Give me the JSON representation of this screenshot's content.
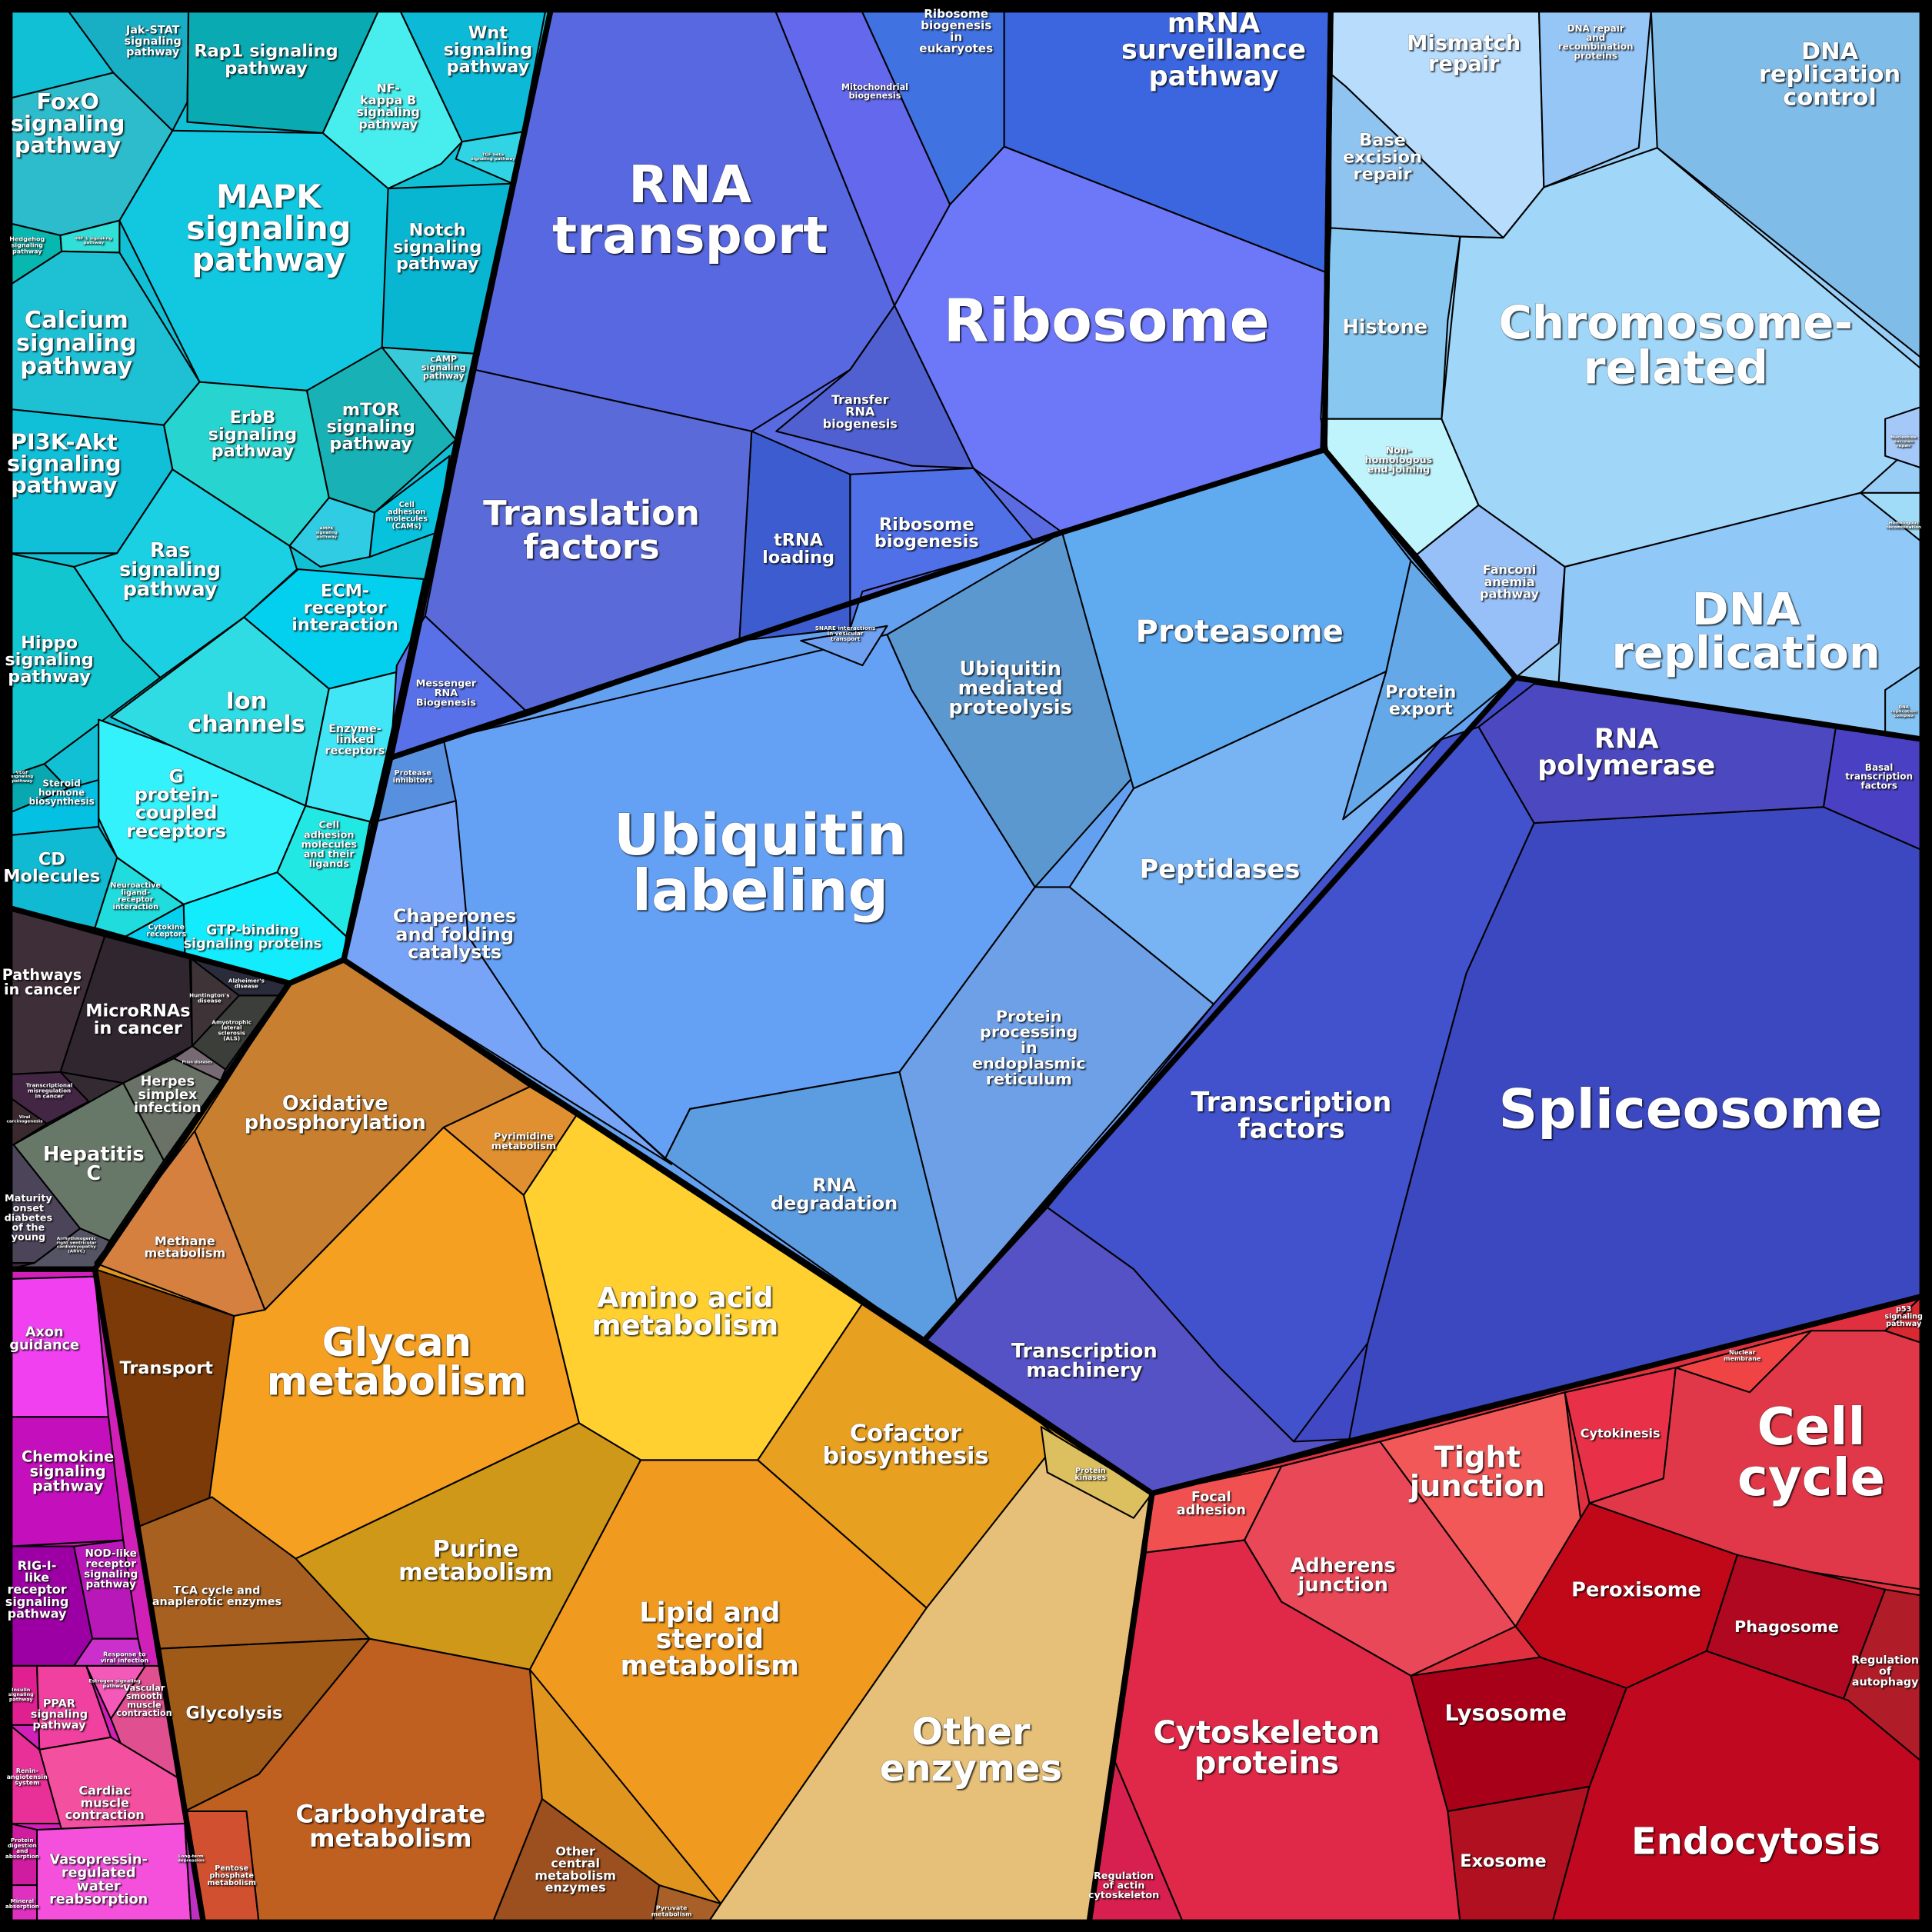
{
  "groups": [
    {
      "id": "signaling",
      "color": "#12c0d6",
      "regions": [
        {
          "id": "foxo",
          "label": "FoxO\nsignaling\npathway",
          "color": "#2cbccc"
        },
        {
          "id": "jak",
          "label": "Jak-STAT\nsignaling\npathway",
          "color": "#18aec4"
        },
        {
          "id": "rap1",
          "label": "Rap1 signaling\npathway",
          "color": "#09aab2"
        },
        {
          "id": "nfkb",
          "label": "NF-\nkappa B\nsignaling\npathway",
          "color": "#48eeee"
        },
        {
          "id": "wnt",
          "label": "Wnt\nsignaling\npathway",
          "color": "#0cbad8"
        },
        {
          "id": "tgfb",
          "label": "TGF-beta\nsignaling pathway",
          "color": "#30d4e4"
        },
        {
          "id": "mapk",
          "label": "MAPK\nsignaling\npathway",
          "color": "#12c8e0"
        },
        {
          "id": "notch",
          "label": "Notch\nsignaling\npathway",
          "color": "#08b6d2"
        },
        {
          "id": "hedgehog",
          "label": "Hedgehog\nsignaling\npathway",
          "color": "#06b8b0"
        },
        {
          "id": "hif1",
          "label": "HIF-1 signaling\npathway",
          "color": "#30e0d8"
        },
        {
          "id": "calcium",
          "label": "Calcium\nsignaling\npathway",
          "color": "#1ec0d4"
        },
        {
          "id": "camp",
          "label": "cAMP\nsignaling\npathway",
          "color": "#38cad8"
        },
        {
          "id": "mtor",
          "label": "mTOR\nsignaling\npathway",
          "color": "#18b2b6"
        },
        {
          "id": "erbb",
          "label": "ErbB\nsignaling\npathway",
          "color": "#28d4d0"
        },
        {
          "id": "pi3k",
          "label": "PI3K-Akt\nsignaling\npathway",
          "color": "#10c0d8"
        },
        {
          "id": "cams",
          "label": "Cell\nadhesion\nmolecules\n(CAMs)",
          "color": "#06c2dc"
        },
        {
          "id": "ampk",
          "label": "AMPK\nsignaling\npathway",
          "color": "#30cce4"
        },
        {
          "id": "ras",
          "label": "Ras\nsignaling\npathway",
          "color": "#1ad0e2"
        },
        {
          "id": "hippo",
          "label": "Hippo\nsignaling\npathway",
          "color": "#12c6d0"
        },
        {
          "id": "vegf",
          "label": "VEGF\nsignaling\npathway",
          "color": "#08a8b0"
        },
        {
          "id": "ecm",
          "label": "ECM-\nreceptor\ninteraction",
          "color": "#02d0ee"
        },
        {
          "id": "ion",
          "label": "Ion\nchannels",
          "color": "#30dce4"
        },
        {
          "id": "enzyme",
          "label": "Enzyme-\nlinked\nreceptors",
          "color": "#40e6f6"
        },
        {
          "id": "gpcr",
          "label": "G\nprotein-\ncoupled\nreceptors",
          "color": "#34f2fc"
        },
        {
          "id": "camlig",
          "label": "Cell\nadhesion\nmolecules\nand their\nligands",
          "color": "#22e8e4"
        },
        {
          "id": "gtp",
          "label": "GTP-binding\nsignaling proteins",
          "color": "#12ecfc"
        },
        {
          "id": "neuro",
          "label": "Neuroactive\nligand-\nreceptor\ninteraction",
          "color": "#20dcdc"
        },
        {
          "id": "cytokine",
          "label": "Cytokine\nreceptors",
          "color": "#04d0f0"
        },
        {
          "id": "steroid",
          "label": "Steroid\nhormone\nbiosynthesis",
          "color": "#04c0e2"
        },
        {
          "id": "cd",
          "label": "CD\nMolecules",
          "color": "#10bad2"
        }
      ]
    },
    {
      "id": "disease",
      "color": "#332a32",
      "regions": [
        {
          "id": "pathcancer",
          "label": "Pathways\nin cancer",
          "color": "#3e2e38"
        },
        {
          "id": "microrna",
          "label": "MicroRNAs\nin cancer",
          "color": "#302630"
        },
        {
          "id": "alz",
          "label": "Alzheimer's\ndisease",
          "color": "#2a2c3c"
        },
        {
          "id": "hunt",
          "label": "Huntington's\ndisease",
          "color": "#3e3438"
        },
        {
          "id": "als",
          "label": "Amyotrophic\nlateral\nsclerosis\n(ALS)",
          "color": "#3c3e3a"
        },
        {
          "id": "prion",
          "label": "Prion diseases",
          "color": "#786a74"
        },
        {
          "id": "herpes",
          "label": "Herpes\nsimplex\ninfection",
          "color": "#6a7268"
        },
        {
          "id": "transmis",
          "label": "Transcriptional\nmisregulation\nin cancer",
          "color": "#422644"
        },
        {
          "id": "viral",
          "label": "Viral\ncarcinogenesis",
          "color": "#3a2a30"
        },
        {
          "id": "hepc",
          "label": "Hepatitis\nC",
          "color": "#687868"
        },
        {
          "id": "mody",
          "label": "Maturity\nonset\ndiabetes\nof the\nyoung",
          "color": "#4c4458"
        },
        {
          "id": "arvc",
          "label": "Arrhythmogenic\nright ventricular\ncardiomyopathy\n(ARVC)",
          "color": "#545464"
        }
      ]
    },
    {
      "id": "organismal",
      "color": "#d020b8",
      "regions": [
        {
          "id": "axon",
          "label": "Axon\nguidance",
          "color": "#f040f0"
        },
        {
          "id": "chemokine",
          "label": "Chemokine\nsignaling\npathway",
          "color": "#c410bc"
        },
        {
          "id": "rig",
          "label": "RIG-I-\nlike\nreceptor\nsignaling\npathway",
          "color": "#9c00a4"
        },
        {
          "id": "nod",
          "label": "NOD-like\nreceptor\nsignaling\npathway",
          "color": "#b818b8"
        },
        {
          "id": "viralresp",
          "label": "Response to\nviral infection",
          "color": "#cc30cc"
        },
        {
          "id": "insulin",
          "label": "Insulin\nsignaling\npathway",
          "color": "#e02090"
        },
        {
          "id": "ppar",
          "label": "PPAR\nsignaling\npathway",
          "color": "#f040a0"
        },
        {
          "id": "estrogen",
          "label": "Estrogen signaling\npathway",
          "color": "#f458b8"
        },
        {
          "id": "vascular",
          "label": "Vascular\nsmooth\nmuscle\ncontraction",
          "color": "#e05090"
        },
        {
          "id": "renin",
          "label": "Renin-\nangiotensin\nsystem",
          "color": "#e83098"
        },
        {
          "id": "cardiac",
          "label": "Cardiac\nmuscle\ncontraction",
          "color": "#f450a0"
        },
        {
          "id": "protdig",
          "label": "Protein\ndigestion\nand\nabsorption",
          "color": "#d01ca0"
        },
        {
          "id": "mineral",
          "label": "Mineral\nabsorption",
          "color": "#e030c0"
        },
        {
          "id": "vasopressin",
          "label": "Vasopressin-\nregulated\nwater\nreabsorption",
          "color": "#f450dc"
        },
        {
          "id": "ltd",
          "label": "Long-term\ndepression",
          "color": "#c030c0"
        }
      ]
    },
    {
      "id": "metabolism",
      "color": "#e0961e",
      "regions": [
        {
          "id": "transport",
          "label": "Transport",
          "color": "#7c3a08"
        },
        {
          "id": "methane",
          "label": "Methane\nmetabolism",
          "color": "#d68040"
        },
        {
          "id": "oxphos",
          "label": "Oxidative\nphosphorylation",
          "color": "#c88030"
        },
        {
          "id": "pyrimidine",
          "label": "Pyrimidine\nmetabolism",
          "color": "#e09030"
        },
        {
          "id": "glycan",
          "label": "Glycan\nmetabolism",
          "color": "#f5a020"
        },
        {
          "id": "aminoacid",
          "label": "Amino acid\nmetabolism",
          "color": "#ffd030"
        },
        {
          "id": "cofactor",
          "label": "Cofactor\nbiosynthesis",
          "color": "#e8a020"
        },
        {
          "id": "purine",
          "label": "Purine\nmetabolism",
          "color": "#d09818"
        },
        {
          "id": "lipid",
          "label": "Lipid and\nsteroid\nmetabolism",
          "color": "#f09a20"
        },
        {
          "id": "tca",
          "label": "TCA cycle and\nanaplerotic enzymes",
          "color": "#a86020"
        },
        {
          "id": "glycolysis",
          "label": "Glycolysis",
          "color": "#a05a18"
        },
        {
          "id": "carbo",
          "label": "Carbohydrate\nmetabolism",
          "color": "#c06020"
        },
        {
          "id": "pentose",
          "label": "Pentose\nphosphate\nmetabolism",
          "color": "#d05030"
        },
        {
          "id": "othercentral",
          "label": "Other\ncentral\nmetabolism\nenzymes",
          "color": "#9c5020"
        },
        {
          "id": "pyruvate",
          "label": "Pyruvate\nmetabolism",
          "color": "#a86028"
        },
        {
          "id": "otherenz",
          "label": "Other\nenzymes",
          "color": "#e6c078"
        },
        {
          "id": "kinases",
          "label": "Protein\nkinases",
          "color": "#dcc060"
        }
      ]
    },
    {
      "id": "folding",
      "color": "#64a0f0",
      "regions": [
        {
          "id": "ubqlab",
          "label": "Ubiquitin\nlabeling",
          "color": "#64a0f4"
        },
        {
          "id": "protinh",
          "label": "Protease\ninhibitors",
          "color": "#5890e0"
        },
        {
          "id": "chaperones",
          "label": "Chaperones\nand folding\ncatalysts",
          "color": "#78a4f8"
        },
        {
          "id": "snare",
          "label": "SNARE interactions\nin vesicular\ntransport",
          "color": "#70a0f0"
        },
        {
          "id": "ubqmed",
          "label": "Ubiquitin\nmediated\nproteolysis",
          "color": "#5c98d0"
        },
        {
          "id": "proteasome",
          "label": "Proteasome",
          "color": "#60aaf0"
        },
        {
          "id": "protexport",
          "label": "Protein\nexport",
          "color": "#64a8e8"
        },
        {
          "id": "peptidases",
          "label": "Peptidases",
          "color": "#78b4f4"
        },
        {
          "id": "protproc",
          "label": "Protein\nprocessing\nin\nendoplasmic\nreticulum",
          "color": "#6ea0e8"
        },
        {
          "id": "rnadeg",
          "label": "RNA\ndegradation",
          "color": "#5c9ce0"
        }
      ]
    },
    {
      "id": "translation",
      "color": "#5a6ae0",
      "regions": [
        {
          "id": "rnatransport",
          "label": "RNA\ntransport",
          "color": "#5868e0"
        },
        {
          "id": "mito",
          "label": "Mitochondrial\nbiogenesis",
          "color": "#6468ec"
        },
        {
          "id": "ribeuk",
          "label": "Ribosome\nbiogenesis\nin\neukaryotes",
          "color": "#4072e2"
        },
        {
          "id": "mrnasurv",
          "label": "mRNA\nsurveillance\npathway",
          "color": "#3c66e0"
        },
        {
          "id": "ribosome",
          "label": "Ribosome",
          "color": "#6c78f8"
        },
        {
          "id": "trnabio",
          "label": "Transfer\nRNA\nbiogenesis",
          "color": "#5060d0"
        },
        {
          "id": "trnaload",
          "label": "tRNA\nloading",
          "color": "#3c5cd0"
        },
        {
          "id": "ribbio",
          "label": "Ribosome\nbiogenesis",
          "color": "#5070e8"
        },
        {
          "id": "transfac",
          "label": "Translation\nfactors",
          "color": "#5a6ad8"
        },
        {
          "id": "messenger",
          "label": "Messenger\nRNA\nBiogenesis",
          "color": "#5870e8"
        }
      ]
    },
    {
      "id": "replication",
      "color": "#98cef6",
      "regions": [
        {
          "id": "mismatch",
          "label": "Mismatch\nrepair",
          "color": "#b8dcfc"
        },
        {
          "id": "dnarepair",
          "label": "DNA repair\nand\nrecombination\nproteins",
          "color": "#96c6f6"
        },
        {
          "id": "dnarepctl",
          "label": "DNA\nreplication\ncontrol",
          "color": "#80bce8"
        },
        {
          "id": "baseexc",
          "label": "Base\nexcision\nrepair",
          "color": "#90c4f0"
        },
        {
          "id": "histone",
          "label": "Histone",
          "color": "#88c8f0"
        },
        {
          "id": "nhej",
          "label": "Non-\nhomologous\nend-joining",
          "color": "#c0f4fc"
        },
        {
          "id": "chromosome",
          "label": "Chromosome-\nrelated",
          "color": "#a0d6f8"
        },
        {
          "id": "nucexc",
          "label": "Nucleotide\nexcision\nrepair",
          "color": "#a4c8f8"
        },
        {
          "id": "homrec",
          "label": "Homologous\nrecombination",
          "color": "#a0dcf8"
        },
        {
          "id": "fanconi",
          "label": "Fanconi\nanemia\npathway",
          "color": "#98c0f8"
        },
        {
          "id": "dnarep",
          "label": "DNA\nreplication",
          "color": "#90c8f8"
        },
        {
          "id": "dnarepcomplex",
          "label": "DNA\nreplication\ncomplex",
          "color": "#84c4f4"
        }
      ]
    },
    {
      "id": "transcription",
      "color": "#4048c4",
      "regions": [
        {
          "id": "rnapol",
          "label": "RNA\npolymerase",
          "color": "#4c48c0"
        },
        {
          "id": "basal",
          "label": "Basal\ntranscription\nfactors",
          "color": "#4a40c4"
        },
        {
          "id": "spliceosome",
          "label": "Spliceosome",
          "color": "#3c48c0"
        },
        {
          "id": "tfs",
          "label": "Transcription\nfactors",
          "color": "#4252cc"
        },
        {
          "id": "tmach",
          "label": "Transcription\nmachinery",
          "color": "#5452c4"
        }
      ]
    },
    {
      "id": "cellular",
      "color": "#e03040",
      "regions": [
        {
          "id": "focal",
          "label": "Focal\nadhesion",
          "color": "#f05050"
        },
        {
          "id": "tight",
          "label": "Tight\njunction",
          "color": "#f25858"
        },
        {
          "id": "adherens",
          "label": "Adherens\njunction",
          "color": "#e84858"
        },
        {
          "id": "cytokinesis",
          "label": "Cytokinesis",
          "color": "#e83048"
        },
        {
          "id": "nuclear",
          "label": "Nuclear\nmembrane",
          "color": "#f04444"
        },
        {
          "id": "cellcycle",
          "label": "Cell\ncycle",
          "color": "#e03848"
        },
        {
          "id": "p53",
          "label": "p53\nsignaling\npathway",
          "color": "#d82830"
        },
        {
          "id": "peroxisome",
          "label": "Peroxisome",
          "color": "#c00818"
        },
        {
          "id": "phagosome",
          "label": "Phagosome",
          "color": "#b00820"
        },
        {
          "id": "regauto",
          "label": "Regulation\nof\nautophagy",
          "color": "#b01c28"
        },
        {
          "id": "lysosome",
          "label": "Lysosome",
          "color": "#a80018"
        },
        {
          "id": "exosome",
          "label": "Exosome",
          "color": "#b01020"
        },
        {
          "id": "endocytosis",
          "label": "Endocytosis",
          "color": "#c00820"
        },
        {
          "id": "cytoskel",
          "label": "Cytoskeleton\nproteins",
          "color": "#e02848"
        },
        {
          "id": "regactin",
          "label": "Regulation\nof actin\ncytoskeleton",
          "color": "#d82050"
        }
      ]
    }
  ]
}
